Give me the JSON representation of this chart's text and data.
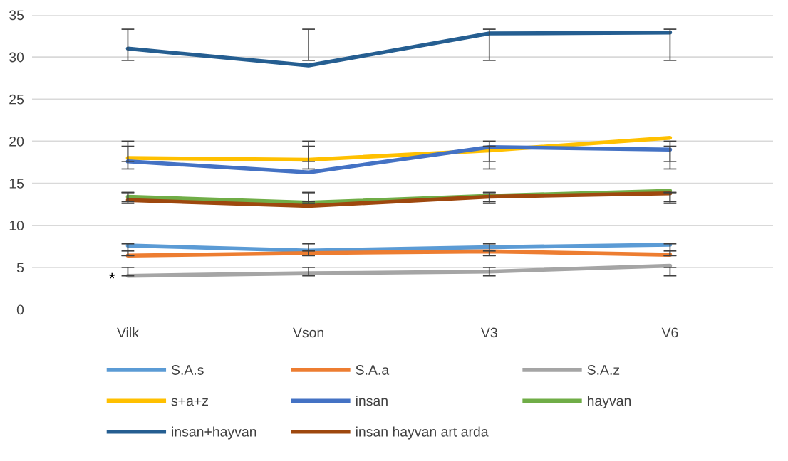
{
  "chart_data": {
    "type": "line",
    "categories": [
      "Vilk",
      "Vson",
      "V3",
      "V6"
    ],
    "ylim": [
      0,
      35
    ],
    "yticks": [
      0,
      5,
      10,
      15,
      20,
      25,
      30,
      35
    ],
    "grid": "y",
    "legend": "bottom",
    "marker": "none",
    "line_style": "solid",
    "series": [
      {
        "name": "S.A.s",
        "color": "#5b9bd5",
        "values": [
          7.6,
          7.0,
          7.4,
          7.7
        ],
        "errors": [
          [
            6.4,
            7.8
          ],
          [
            6.4,
            7.8
          ],
          [
            6.4,
            7.8
          ],
          [
            6.4,
            7.8
          ]
        ]
      },
      {
        "name": "S.A.a",
        "color": "#ed7d31",
        "values": [
          6.4,
          6.7,
          6.9,
          6.5
        ],
        "errors": [
          [
            6.4,
            6.95
          ],
          [
            6.4,
            6.95
          ],
          [
            6.4,
            6.95
          ],
          [
            6.4,
            6.95
          ]
        ]
      },
      {
        "name": "S.A.z",
        "color": "#a5a5a5",
        "values": [
          4.0,
          4.3,
          4.5,
          5.2
        ],
        "errors": [
          [
            4.0,
            5.0
          ],
          [
            4.0,
            5.0
          ],
          [
            4.0,
            5.0
          ],
          [
            4.0,
            5.0
          ]
        ]
      },
      {
        "name": "s+a+z",
        "color": "#ffc000",
        "values": [
          18.0,
          17.8,
          18.9,
          20.4
        ],
        "errors": [
          [
            16.7,
            20.0
          ],
          [
            16.7,
            20.0
          ],
          [
            16.7,
            20.0
          ],
          [
            16.7,
            20.0
          ]
        ]
      },
      {
        "name": "insan",
        "color": "#4472c4",
        "values": [
          17.6,
          16.3,
          19.3,
          19.0
        ],
        "errors": [
          [
            17.6,
            19.4
          ],
          [
            17.6,
            19.4
          ],
          [
            17.6,
            19.4
          ],
          [
            17.6,
            19.4
          ]
        ]
      },
      {
        "name": "hayvan",
        "color": "#70ad47",
        "values": [
          13.4,
          12.7,
          13.5,
          14.1
        ],
        "errors": [
          [
            12.6,
            13.9
          ],
          [
            12.6,
            13.9
          ],
          [
            12.6,
            13.9
          ],
          [
            12.6,
            13.9
          ]
        ]
      },
      {
        "name": "insan+hayvan",
        "color": "#255e91",
        "values": [
          31.0,
          29.0,
          32.8,
          32.9
        ],
        "errors": [
          [
            29.6,
            33.3
          ],
          [
            29.6,
            33.3
          ],
          [
            29.6,
            33.3
          ],
          [
            29.6,
            33.3
          ]
        ]
      },
      {
        "name": "insan hayvan art arda",
        "color": "#9e480e",
        "values": [
          13.0,
          12.3,
          13.4,
          13.8
        ],
        "errors": [
          [
            12.8,
            13.9
          ],
          [
            12.8,
            13.9
          ],
          [
            12.8,
            13.9
          ],
          [
            12.8,
            13.9
          ]
        ]
      }
    ],
    "annotations": [
      {
        "text": "*",
        "x": "Vilk",
        "y": 4.0
      }
    ]
  }
}
